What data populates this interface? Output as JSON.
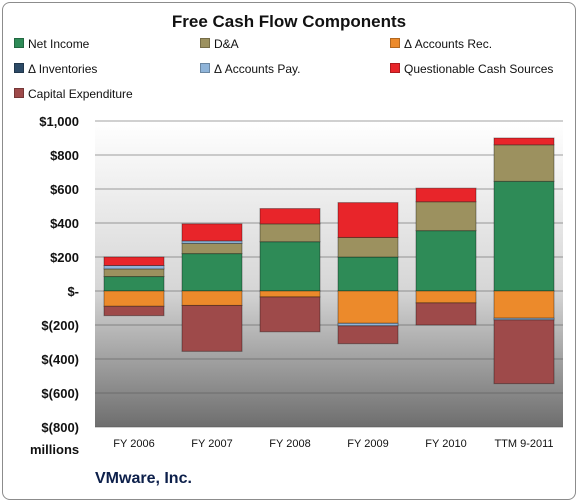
{
  "chart_data": {
    "type": "bar",
    "stacked": true,
    "title": "Free Cash Flow Components",
    "categories": [
      "FY 2006",
      "FY 2007",
      "FY 2008",
      "FY 2009",
      "FY 2010",
      "TTM 9-2011"
    ],
    "series": [
      {
        "name": "Net Income",
        "color": "#2e8b57",
        "values": [
          85,
          220,
          290,
          200,
          355,
          645
        ]
      },
      {
        "name": "D&A",
        "color": "#9c915f",
        "values": [
          45,
          60,
          105,
          115,
          170,
          215
        ]
      },
      {
        "name": "Δ Accounts Rec.",
        "color": "#ec8a2b",
        "values": [
          -90,
          -85,
          -35,
          -190,
          -70,
          -160
        ]
      },
      {
        "name": "Δ Inventories",
        "color": "#2c4a66",
        "values": [
          0,
          0,
          0,
          0,
          0,
          0
        ]
      },
      {
        "name": "Δ Accounts Pay.",
        "color": "#8fb4d9",
        "values": [
          20,
          15,
          0,
          -15,
          0,
          -10
        ]
      },
      {
        "name": "Questionable Cash Sources",
        "color": "#e8252a",
        "values": [
          50,
          100,
          90,
          205,
          80,
          40
        ]
      },
      {
        "name": "Capital Expenditure",
        "color": "#9e4a4a",
        "values": [
          -55,
          -270,
          -205,
          -105,
          -130,
          -375
        ]
      }
    ],
    "y_ticks": [
      "$1,000",
      "$800",
      "$600",
      "$400",
      "$200",
      "$-",
      "$(200)",
      "$(400)",
      "$(600)",
      "$(800)"
    ],
    "ylim": [
      -800,
      1000
    ],
    "ylabel": "millions",
    "legend": "top",
    "grid": true
  },
  "footer": {
    "company": "VMware, Inc."
  }
}
